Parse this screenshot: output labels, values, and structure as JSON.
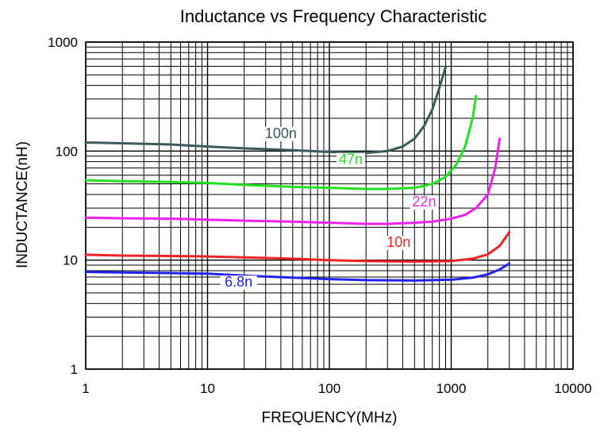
{
  "chart_data": {
    "type": "line",
    "title": "Inductance vs Frequency Characteristic",
    "xlabel": "FREQUENCY(MHz)",
    "ylabel": "INDUCTANCE(nH)",
    "x_scale": "log",
    "y_scale": "log",
    "xlim": [
      1,
      10000
    ],
    "ylim": [
      1,
      1000
    ],
    "x_ticks": [
      "1",
      "10",
      "100",
      "1000",
      "10000"
    ],
    "y_ticks": [
      "1",
      "10",
      "100",
      "1000"
    ],
    "grid": true,
    "legend": "inline labels",
    "series": [
      {
        "name": "100n",
        "color": "#3c5a5a",
        "label_at": [
          40,
          132
        ],
        "x": [
          1,
          2,
          5,
          10,
          20,
          50,
          100,
          200,
          300,
          400,
          500,
          600,
          700,
          800,
          900
        ],
        "y": [
          120,
          118,
          115,
          110,
          106,
          102,
          98,
          96,
          100,
          110,
          130,
          170,
          240,
          380,
          590
        ]
      },
      {
        "name": "47n",
        "color": "#22e022",
        "label_at": [
          150,
          76
        ],
        "x": [
          1,
          2,
          5,
          10,
          20,
          50,
          100,
          200,
          300,
          500,
          700,
          900,
          1100,
          1300,
          1500,
          1600
        ],
        "y": [
          54,
          53,
          52,
          51,
          49,
          47,
          46,
          45,
          45,
          46,
          50,
          58,
          75,
          110,
          200,
          320
        ]
      },
      {
        "name": "22n",
        "color": "#ee22ee",
        "label_at": [
          600,
          31
        ],
        "x": [
          1,
          2,
          5,
          10,
          20,
          50,
          100,
          200,
          300,
          500,
          700,
          1000,
          1300,
          1600,
          2000,
          2300,
          2500
        ],
        "y": [
          24.5,
          24.2,
          24,
          23.5,
          23,
          22.5,
          22,
          21.5,
          21.5,
          22,
          22.5,
          24,
          26,
          30,
          40,
          70,
          130
        ]
      },
      {
        "name": "10n",
        "color": "#ee2222",
        "label_at": [
          370,
          13.2
        ],
        "x": [
          1,
          2,
          5,
          10,
          20,
          50,
          100,
          200,
          500,
          1000,
          1500,
          2000,
          2500,
          3000
        ],
        "y": [
          11.2,
          11,
          10.9,
          10.8,
          10.6,
          10.3,
          10,
          9.8,
          9.7,
          9.8,
          10.3,
          11.3,
          13.5,
          18
        ]
      },
      {
        "name": "6.8n",
        "color": "#2222ee",
        "label_at": [
          18,
          5.7
        ],
        "x": [
          1,
          2,
          5,
          10,
          20,
          50,
          100,
          200,
          500,
          1000,
          1500,
          2000,
          2500,
          3000
        ],
        "y": [
          7.8,
          7.7,
          7.6,
          7.5,
          7.2,
          6.9,
          6.7,
          6.55,
          6.5,
          6.6,
          6.9,
          7.4,
          8.2,
          9.3
        ]
      }
    ]
  }
}
